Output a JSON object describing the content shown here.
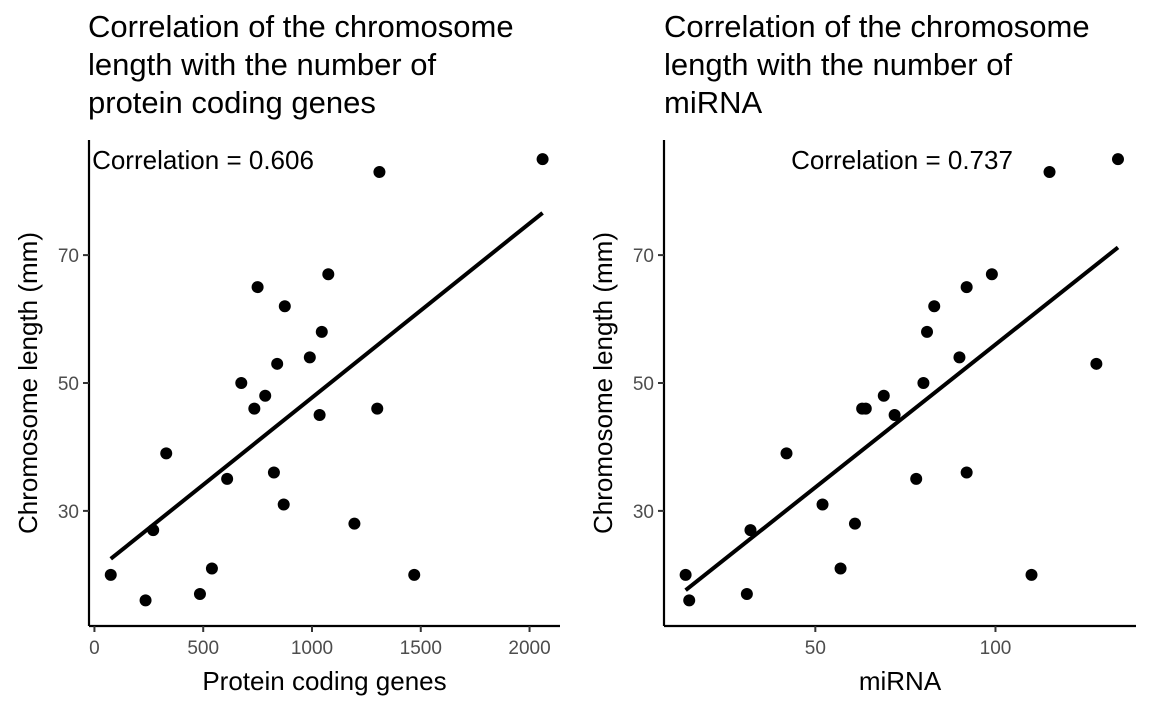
{
  "chart_data": [
    {
      "type": "scatter",
      "title_lines": [
        "Correlation of the chromosome",
        "length with the number of",
        "protein coding genes"
      ],
      "xlabel": "Protein coding genes",
      "ylabel": "Chromosome length (mm)",
      "annotation": "Correlation = 0.606",
      "xlim": [
        -25,
        2140
      ],
      "ylim": [
        12,
        88
      ],
      "x_ticks": [
        0,
        500,
        1000,
        1500,
        2000
      ],
      "y_ticks": [
        30,
        50,
        70
      ],
      "trend": {
        "x": [
          75,
          2060
        ],
        "y": [
          22.5,
          76.6
        ]
      },
      "points": [
        {
          "x": 2060,
          "y": 85
        },
        {
          "x": 1310,
          "y": 83
        },
        {
          "x": 1075,
          "y": 67
        },
        {
          "x": 750,
          "y": 65
        },
        {
          "x": 875,
          "y": 62
        },
        {
          "x": 1045,
          "y": 58
        },
        {
          "x": 990,
          "y": 54
        },
        {
          "x": 840,
          "y": 53
        },
        {
          "x": 675,
          "y": 50
        },
        {
          "x": 785,
          "y": 48
        },
        {
          "x": 735,
          "y": 46
        },
        {
          "x": 1300,
          "y": 46
        },
        {
          "x": 1035,
          "y": 45
        },
        {
          "x": 330,
          "y": 39
        },
        {
          "x": 825,
          "y": 36
        },
        {
          "x": 610,
          "y": 35
        },
        {
          "x": 870,
          "y": 31
        },
        {
          "x": 1195,
          "y": 28
        },
        {
          "x": 270,
          "y": 27
        },
        {
          "x": 540,
          "y": 21
        },
        {
          "x": 75,
          "y": 20
        },
        {
          "x": 1470,
          "y": 20
        },
        {
          "x": 485,
          "y": 17
        },
        {
          "x": 235,
          "y": 16
        }
      ]
    },
    {
      "type": "scatter",
      "title_lines": [
        "Correlation of the chromosome",
        "length with the number of",
        "miRNA"
      ],
      "xlabel": "miRNA",
      "ylabel": "Chromosome length (mm)",
      "annotation": "Correlation = 0.737",
      "xlim": [
        8,
        139
      ],
      "ylim": [
        12,
        88
      ],
      "x_ticks": [
        50,
        100
      ],
      "y_ticks": [
        30,
        50,
        70
      ],
      "trend": {
        "x": [
          14,
          134
        ],
        "y": [
          17.6,
          71.2
        ]
      },
      "points": [
        {
          "x": 134,
          "y": 85
        },
        {
          "x": 115,
          "y": 83
        },
        {
          "x": 99,
          "y": 67
        },
        {
          "x": 92,
          "y": 65
        },
        {
          "x": 83,
          "y": 62
        },
        {
          "x": 81,
          "y": 58
        },
        {
          "x": 90,
          "y": 54
        },
        {
          "x": 128,
          "y": 53
        },
        {
          "x": 80,
          "y": 50
        },
        {
          "x": 69,
          "y": 48
        },
        {
          "x": 63,
          "y": 46
        },
        {
          "x": 64,
          "y": 46
        },
        {
          "x": 72,
          "y": 45
        },
        {
          "x": 42,
          "y": 39
        },
        {
          "x": 92,
          "y": 36
        },
        {
          "x": 78,
          "y": 35
        },
        {
          "x": 52,
          "y": 31
        },
        {
          "x": 61,
          "y": 28
        },
        {
          "x": 32,
          "y": 27
        },
        {
          "x": 57,
          "y": 21
        },
        {
          "x": 14,
          "y": 20
        },
        {
          "x": 110,
          "y": 20
        },
        {
          "x": 31,
          "y": 17
        },
        {
          "x": 15,
          "y": 16
        }
      ]
    }
  ]
}
